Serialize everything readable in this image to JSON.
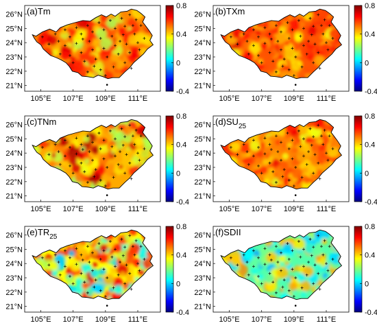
{
  "figure": {
    "lat_ticks": [
      "26°N",
      "25°N",
      "24°N",
      "23°N",
      "22°N",
      "21°N"
    ],
    "lon_ticks": [
      "105°E",
      "107°E",
      "109°E",
      "111°E"
    ],
    "colorbar_ticks": [
      "0.8",
      "0.4",
      "0",
      "-0.4"
    ],
    "colorbar_range": [
      -0.4,
      0.8
    ],
    "colormap": [
      "#00007f",
      "#0000ff",
      "#007fff",
      "#00ffff",
      "#7fff7f",
      "#ffff00",
      "#ff7f00",
      "#ff0000",
      "#7f0000"
    ],
    "panels": [
      {
        "label": "(a)Tm",
        "label_sub": "",
        "mean": 0.5,
        "hot": 0.62,
        "cool": 0.32
      },
      {
        "label": "(b)TXm",
        "label_sub": "",
        "mean": 0.55,
        "hot": 0.62,
        "cool": 0.4
      },
      {
        "label": "(c)TNm",
        "label_sub": "",
        "mean": 0.45,
        "hot": 0.68,
        "cool": 0.3
      },
      {
        "label": "(d)SU",
        "label_sub": "25",
        "mean": 0.5,
        "hot": 0.6,
        "cool": 0.38
      },
      {
        "label": "(e)TR",
        "label_sub": "25",
        "mean": 0.35,
        "hot": 0.62,
        "cool": 0.05
      },
      {
        "label": "(f)SDII",
        "label_sub": "",
        "mean": 0.15,
        "hot": 0.42,
        "cool": 0.02
      }
    ]
  }
}
